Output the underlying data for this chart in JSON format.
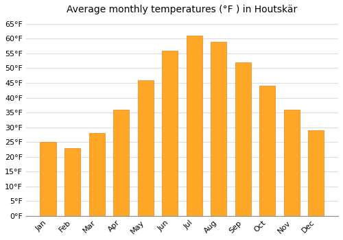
{
  "title": "Average monthly temperatures (°F ) in HoutskÃ¤r",
  "title_display": "Average monthly temperatures (°F ) in Houtskär",
  "months": [
    "Jan",
    "Feb",
    "Mar",
    "Apr",
    "May",
    "Jun",
    "Jul",
    "Aug",
    "Sep",
    "Oct",
    "Nov",
    "Dec"
  ],
  "values": [
    25,
    23,
    28,
    36,
    46,
    56,
    61,
    59,
    52,
    44,
    36,
    29
  ],
  "bar_color_top": "#FFA726",
  "bar_color_bottom": "#FFB74D",
  "bar_edge_color": "#F57F17",
  "background_color": "#FFFFFF",
  "plot_bg_color": "#FFFFFF",
  "grid_color": "#DDDDDD",
  "ylim": [
    0,
    67
  ],
  "yticks": [
    0,
    5,
    10,
    15,
    20,
    25,
    30,
    35,
    40,
    45,
    50,
    55,
    60,
    65
  ],
  "title_fontsize": 10,
  "tick_fontsize": 8,
  "bar_width": 0.65
}
